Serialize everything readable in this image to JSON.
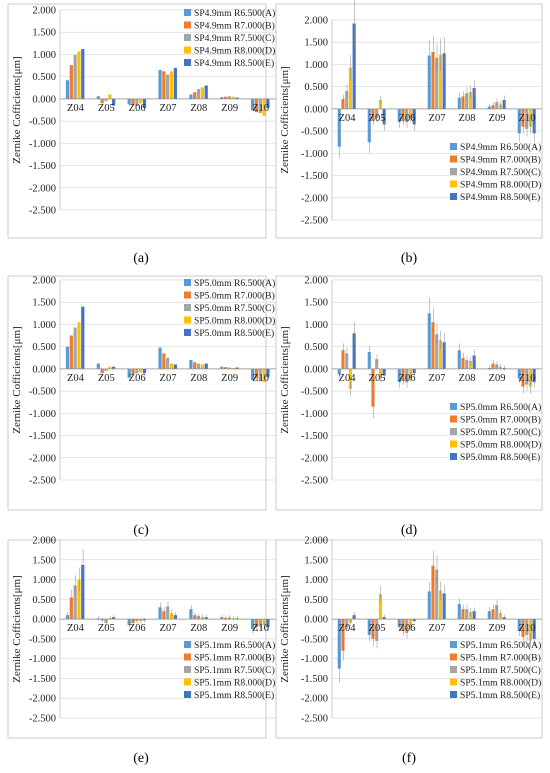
{
  "colors": {
    "A": "#5b9bd5",
    "B": "#ed7d31",
    "C": "#a5a5a5",
    "D": "#ffc000",
    "E": "#4472c4",
    "grid": "#d9d9d9",
    "frame": "#bfbfbf"
  },
  "chart_data": [
    {
      "type": "bar",
      "panel": "(a)",
      "ylabel": "Zernike Cofficients[μm]",
      "ylim": [
        -2.5,
        2.0
      ],
      "yticks": [
        "2.000",
        "1.500",
        "1.000",
        "0.500",
        "0.000",
        "-0.500",
        "-1.000",
        "-1.500",
        "-2.000",
        "-2.500"
      ],
      "categories": [
        "Z04",
        "Z05",
        "Z06",
        "Z07",
        "Z08",
        "Z09",
        "Z10"
      ],
      "legend_position": "top-right",
      "series": [
        {
          "name": "SP4.9mm R6.500(A)",
          "key": "A",
          "values": [
            0.42,
            0.06,
            -0.12,
            0.65,
            0.1,
            0.04,
            -0.25
          ]
        },
        {
          "name": "SP4.9mm R7.000(B)",
          "key": "B",
          "values": [
            0.76,
            -0.1,
            -0.14,
            0.62,
            0.15,
            0.05,
            -0.3
          ]
        },
        {
          "name": "SP4.9mm R7.500(C)",
          "key": "C",
          "values": [
            0.99,
            -0.05,
            -0.16,
            0.55,
            0.22,
            0.06,
            -0.32
          ]
        },
        {
          "name": "SP4.9mm R8.000(D)",
          "key": "D",
          "values": [
            1.07,
            0.1,
            -0.1,
            0.62,
            0.26,
            0.05,
            -0.38
          ]
        },
        {
          "name": "SP4.9mm R8.500(E)",
          "key": "E",
          "values": [
            1.12,
            -0.15,
            -0.2,
            0.7,
            0.3,
            0.03,
            -0.2
          ]
        }
      ]
    },
    {
      "type": "bar",
      "panel": "(b)",
      "ylabel": "Zernike Cofficients[μm]",
      "ylim": [
        -2.5,
        2.0
      ],
      "yticks": [
        "2.000",
        "1.500",
        "1.000",
        "0.500",
        "0.000",
        "-0.500",
        "-1.000",
        "-1.500",
        "-2.000",
        "-2.500"
      ],
      "categories": [
        "Z04",
        "Z05",
        "Z06",
        "Z07",
        "Z08",
        "Z09",
        "Z10"
      ],
      "legend_position": "bottom-right",
      "series": [
        {
          "name": "SP4.9mm R6.500(A)",
          "key": "A",
          "values": [
            -0.85,
            -0.75,
            -0.3,
            1.2,
            0.25,
            0.05,
            -0.55
          ]
        },
        {
          "name": "SP4.9mm R7.000(B)",
          "key": "B",
          "values": [
            0.22,
            -0.25,
            -0.25,
            1.28,
            0.28,
            0.08,
            -0.4
          ]
        },
        {
          "name": "SP4.9mm R7.500(C)",
          "key": "C",
          "values": [
            0.4,
            -0.2,
            -0.3,
            1.15,
            0.35,
            0.15,
            -0.45
          ]
        },
        {
          "name": "SP4.9mm R8.000(D)",
          "key": "D",
          "values": [
            0.93,
            0.2,
            -0.2,
            1.22,
            0.38,
            0.1,
            -0.4
          ]
        },
        {
          "name": "SP4.9mm R8.500(E)",
          "key": "E",
          "values": [
            1.92,
            -0.35,
            -0.35,
            1.25,
            0.47,
            0.2,
            -0.55
          ]
        }
      ]
    },
    {
      "type": "bar",
      "panel": "(c)",
      "ylabel": "Zernike Cofficients[μm]",
      "ylim": [
        -2.5,
        2.0
      ],
      "yticks": [
        "2.000",
        "1.500",
        "1.000",
        "0.500",
        "0.000",
        "-0.500",
        "-1.000",
        "-1.500",
        "-2.000",
        "-2.500"
      ],
      "categories": [
        "Z04",
        "Z05",
        "Z06",
        "Z07",
        "Z08",
        "Z09",
        "Z10"
      ],
      "legend_position": "top-right",
      "series": [
        {
          "name": "SP5.0mm R6.500(A)",
          "key": "A",
          "values": [
            0.5,
            0.12,
            -0.2,
            0.48,
            0.2,
            0.05,
            -0.25
          ]
        },
        {
          "name": "SP5.0mm R7.000(B)",
          "key": "B",
          "values": [
            0.75,
            -0.1,
            -0.12,
            0.35,
            0.15,
            0.04,
            -0.22
          ]
        },
        {
          "name": "SP5.0mm R7.500(C)",
          "key": "C",
          "values": [
            0.93,
            -0.05,
            -0.1,
            0.25,
            0.12,
            0.03,
            -0.28
          ]
        },
        {
          "name": "SP5.0mm R8.000(D)",
          "key": "D",
          "values": [
            1.05,
            0.05,
            -0.08,
            0.12,
            0.1,
            0.02,
            -0.3
          ]
        },
        {
          "name": "SP5.0mm R8.500(E)",
          "key": "E",
          "values": [
            1.4,
            0.05,
            -0.1,
            0.1,
            0.12,
            0.03,
            -0.18
          ]
        }
      ]
    },
    {
      "type": "bar",
      "panel": "(d)",
      "ylabel": "Zernike Cofficients[μm]",
      "ylim": [
        -2.5,
        2.0
      ],
      "yticks": [
        "2.000",
        "1.500",
        "1.000",
        "0.500",
        "0.000",
        "-0.500",
        "-1.000",
        "-1.500",
        "-2.000",
        "-2.500"
      ],
      "categories": [
        "Z04",
        "Z05",
        "Z06",
        "Z07",
        "Z08",
        "Z09",
        "Z10"
      ],
      "legend_position": "bottom-right",
      "series": [
        {
          "name": "SP5.0mm R6.500(A)",
          "key": "A",
          "values": [
            -0.12,
            0.38,
            -0.3,
            1.25,
            0.42,
            0.02,
            -0.22
          ]
        },
        {
          "name": "SP5.0mm R7.000(B)",
          "key": "B",
          "values": [
            0.42,
            -0.85,
            -0.25,
            1.05,
            0.25,
            0.12,
            -0.4
          ]
        },
        {
          "name": "SP5.0mm R7.500(C)",
          "key": "C",
          "values": [
            0.35,
            0.22,
            -0.3,
            0.78,
            0.2,
            0.1,
            -0.35
          ]
        },
        {
          "name": "SP5.0mm R8.000(D)",
          "key": "D",
          "values": [
            -0.45,
            -0.2,
            -0.2,
            0.65,
            0.18,
            0.05,
            -0.4
          ]
        },
        {
          "name": "SP5.0mm R8.500(E)",
          "key": "E",
          "values": [
            0.8,
            -0.15,
            -0.1,
            0.6,
            0.3,
            0.02,
            -0.3
          ]
        }
      ]
    },
    {
      "type": "bar",
      "panel": "(e)",
      "ylabel": "Zernike Cofficients[μm]",
      "ylim": [
        -2.5,
        2.0
      ],
      "yticks": [
        "2.000",
        "1.500",
        "1.000",
        "0.500",
        "0.000",
        "-0.500",
        "-1.000",
        "-1.500",
        "-2.000",
        "-2.500"
      ],
      "categories": [
        "Z04",
        "Z05",
        "Z06",
        "Z07",
        "Z08",
        "Z09",
        "Z10"
      ],
      "legend_position": "bottom-right",
      "series": [
        {
          "name": "SP5.1mm R6.500(A)",
          "key": "A",
          "values": [
            0.1,
            0.02,
            -0.15,
            0.3,
            0.25,
            0.05,
            -0.25
          ]
        },
        {
          "name": "SP5.1mm R7.000(B)",
          "key": "B",
          "values": [
            0.55,
            -0.03,
            -0.1,
            0.2,
            0.1,
            0.03,
            -0.2
          ]
        },
        {
          "name": "SP5.1mm R7.500(C)",
          "key": "C",
          "values": [
            0.85,
            -0.1,
            -0.05,
            0.32,
            0.08,
            0.04,
            -0.18
          ]
        },
        {
          "name": "SP5.1mm R8.000(D)",
          "key": "D",
          "values": [
            1.0,
            0.03,
            -0.05,
            0.15,
            0.05,
            0.02,
            -0.15
          ]
        },
        {
          "name": "SP5.1mm R8.500(E)",
          "key": "E",
          "values": [
            1.37,
            0.05,
            -0.03,
            0.1,
            0.05,
            0.02,
            -0.2
          ]
        }
      ]
    },
    {
      "type": "bar",
      "panel": "(f)",
      "ylabel": "Zernike Cofficients[μm]",
      "ylim": [
        -2.5,
        2.0
      ],
      "yticks": [
        "2.000",
        "1.500",
        "1.000",
        "0.500",
        "0.000",
        "-0.500",
        "-1.000",
        "-1.500",
        "-2.000",
        "-2.500"
      ],
      "categories": [
        "Z04",
        "Z05",
        "Z06",
        "Z07",
        "Z08",
        "Z09",
        "Z10"
      ],
      "legend_position": "bottom-right",
      "series": [
        {
          "name": "SP5.1mm R6.500(A)",
          "key": "A",
          "values": [
            -1.25,
            -0.4,
            -0.2,
            0.7,
            0.38,
            0.2,
            -0.3
          ]
        },
        {
          "name": "SP5.1mm R7.000(B)",
          "key": "B",
          "values": [
            -0.8,
            -0.5,
            -0.3,
            1.35,
            0.25,
            0.25,
            -0.45
          ]
        },
        {
          "name": "SP5.1mm R7.500(C)",
          "key": "C",
          "values": [
            -0.2,
            -0.55,
            -0.35,
            1.25,
            0.25,
            0.35,
            -0.4
          ]
        },
        {
          "name": "SP5.1mm R8.000(D)",
          "key": "D",
          "values": [
            -0.1,
            0.63,
            -0.2,
            0.72,
            0.18,
            0.15,
            -0.55
          ]
        },
        {
          "name": "SP5.1mm R8.500(E)",
          "key": "E",
          "values": [
            0.1,
            0.05,
            -0.05,
            0.65,
            0.2,
            0.05,
            -0.5
          ]
        }
      ]
    }
  ]
}
